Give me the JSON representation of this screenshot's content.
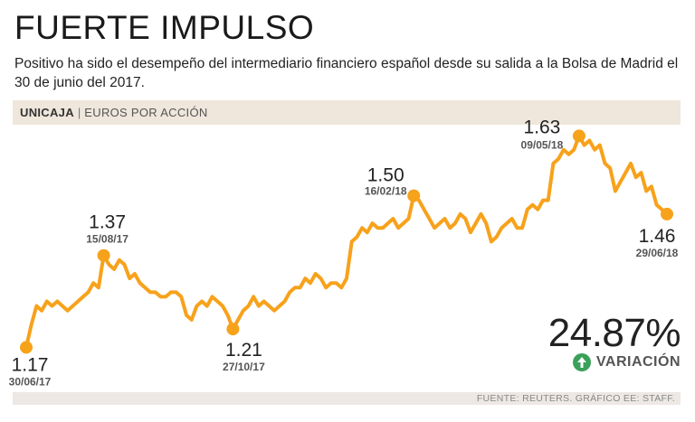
{
  "header": {
    "title": "FUERTE IMPULSO",
    "subtitle": "Positivo ha sido el desempeño del intermediario financiero español desde su salida a la Bolsa de Madrid el 30 de junio del 2017."
  },
  "band": {
    "company": "UNICAJA",
    "separator": "|",
    "unit": "EUROS POR ACCIÓN"
  },
  "variation": {
    "value": "24.87%",
    "label": "VARIACIÓN",
    "icon": "arrow-up-icon"
  },
  "footer": {
    "source": "FUENTE: REUTERS. GRÁFICO EE: STAFF."
  },
  "colors": {
    "line": "#f7a21b",
    "band": "#efe6dc",
    "up": "#3aa05a"
  },
  "chart_data": {
    "type": "line",
    "title": "FUERTE IMPULSO",
    "ylabel": "Euros por acción",
    "ylim": [
      1.1,
      1.68
    ],
    "series": [
      {
        "name": "Unicaja",
        "values": [
          1.17,
          1.22,
          1.26,
          1.25,
          1.27,
          1.26,
          1.27,
          1.26,
          1.25,
          1.26,
          1.27,
          1.28,
          1.29,
          1.31,
          1.3,
          1.37,
          1.35,
          1.34,
          1.36,
          1.35,
          1.32,
          1.33,
          1.31,
          1.3,
          1.29,
          1.29,
          1.28,
          1.28,
          1.29,
          1.29,
          1.28,
          1.24,
          1.23,
          1.26,
          1.27,
          1.26,
          1.28,
          1.27,
          1.26,
          1.24,
          1.21,
          1.23,
          1.25,
          1.26,
          1.28,
          1.26,
          1.27,
          1.26,
          1.25,
          1.26,
          1.27,
          1.29,
          1.3,
          1.3,
          1.32,
          1.31,
          1.33,
          1.32,
          1.3,
          1.31,
          1.31,
          1.3,
          1.32,
          1.4,
          1.41,
          1.43,
          1.42,
          1.44,
          1.43,
          1.43,
          1.44,
          1.45,
          1.43,
          1.44,
          1.45,
          1.5,
          1.49,
          1.47,
          1.45,
          1.43,
          1.44,
          1.45,
          1.43,
          1.44,
          1.46,
          1.45,
          1.42,
          1.44,
          1.46,
          1.44,
          1.4,
          1.41,
          1.43,
          1.44,
          1.45,
          1.43,
          1.43,
          1.47,
          1.48,
          1.47,
          1.49,
          1.49,
          1.57,
          1.58,
          1.6,
          1.59,
          1.6,
          1.63,
          1.61,
          1.62,
          1.6,
          1.61,
          1.57,
          1.56,
          1.51,
          1.53,
          1.55,
          1.57,
          1.54,
          1.55,
          1.51,
          1.52,
          1.48,
          1.47,
          1.46
        ],
        "labels": [
          {
            "index": 0,
            "value": "1.17",
            "date": "30/06/17"
          },
          {
            "index": 15,
            "value": "1.37",
            "date": "15/08/17"
          },
          {
            "index": 40,
            "value": "1.21",
            "date": "27/10/17"
          },
          {
            "index": 75,
            "value": "1.50",
            "date": "16/02/18"
          },
          {
            "index": 107,
            "value": "1.63",
            "date": "09/05/18"
          },
          {
            "index": 124,
            "value": "1.46",
            "date": "29/06/18"
          }
        ]
      }
    ]
  }
}
